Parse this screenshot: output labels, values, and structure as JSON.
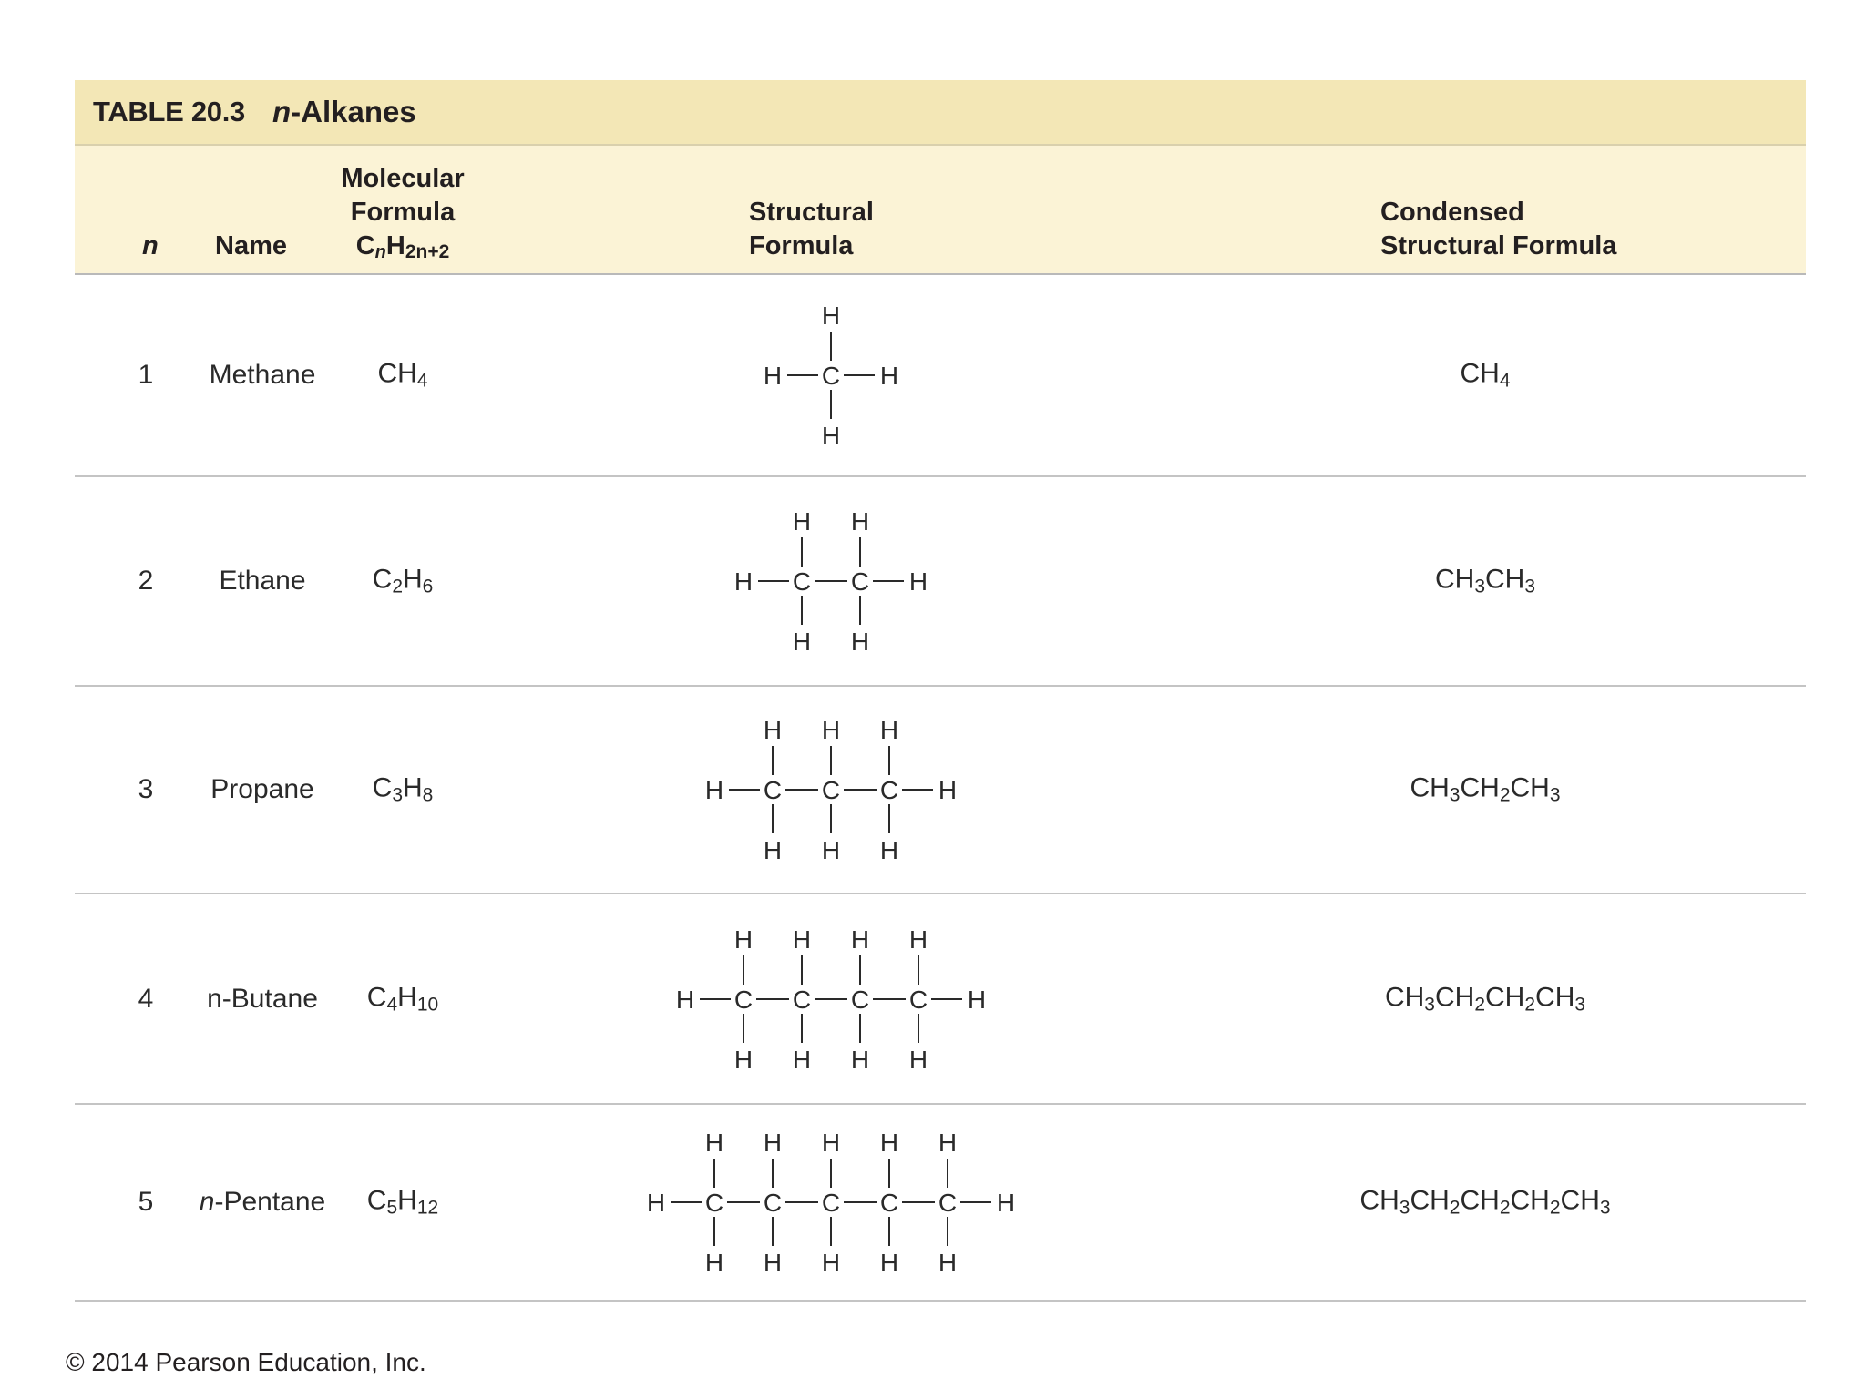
{
  "table": {
    "number": "TABLE 20.3",
    "title_prefix": "n",
    "title_suffix": "-Alkanes",
    "headers": {
      "n": "n",
      "name": "Name",
      "molecular_line1": "Molecular",
      "molecular_line2": "Formula",
      "molecular_line3_c": "C",
      "molecular_line3_n": "n",
      "molecular_line3_h": "H",
      "molecular_line3_sub": "2n+2",
      "structural_line1": "Structural",
      "structural_line2": "Formula",
      "condensed_line1": "Condensed",
      "condensed_line2": "Structural Formula"
    },
    "rows": [
      {
        "n": "1",
        "name": "Methane",
        "name_italic_prefix": "",
        "carbons": 1,
        "molecular": [
          [
            "C",
            ""
          ],
          [
            "H",
            "4"
          ]
        ],
        "condensed": [
          [
            "CH",
            "4"
          ]
        ]
      },
      {
        "n": "2",
        "name": "Ethane",
        "name_italic_prefix": "",
        "carbons": 2,
        "molecular": [
          [
            "C",
            "2"
          ],
          [
            "H",
            "6"
          ]
        ],
        "condensed": [
          [
            "CH",
            "3"
          ],
          [
            "CH",
            "3"
          ]
        ]
      },
      {
        "n": "3",
        "name": "Propane",
        "name_italic_prefix": "",
        "carbons": 3,
        "molecular": [
          [
            "C",
            "3"
          ],
          [
            "H",
            "8"
          ]
        ],
        "condensed": [
          [
            "CH",
            "3"
          ],
          [
            "CH",
            "2"
          ],
          [
            "CH",
            "3"
          ]
        ]
      },
      {
        "n": "4",
        "name": "n-Butane",
        "name_italic_prefix": "",
        "carbons": 4,
        "molecular": [
          [
            "C",
            "4"
          ],
          [
            "H",
            "10"
          ]
        ],
        "condensed": [
          [
            "CH",
            "3"
          ],
          [
            "CH",
            "2"
          ],
          [
            "CH",
            "2"
          ],
          [
            "CH",
            "3"
          ]
        ]
      },
      {
        "n": "5",
        "name": "-Pentane",
        "name_italic_prefix": "n",
        "carbons": 5,
        "molecular": [
          [
            "C",
            "5"
          ],
          [
            "H",
            "12"
          ]
        ],
        "condensed": [
          [
            "CH",
            "3"
          ],
          [
            "CH",
            "2"
          ],
          [
            "CH",
            "2"
          ],
          [
            "CH",
            "2"
          ],
          [
            "CH",
            "3"
          ]
        ]
      }
    ],
    "atom_carbon": "C",
    "atom_hydrogen": "H"
  },
  "footer": {
    "copyright": "© 2014 Pearson Education, Inc."
  }
}
